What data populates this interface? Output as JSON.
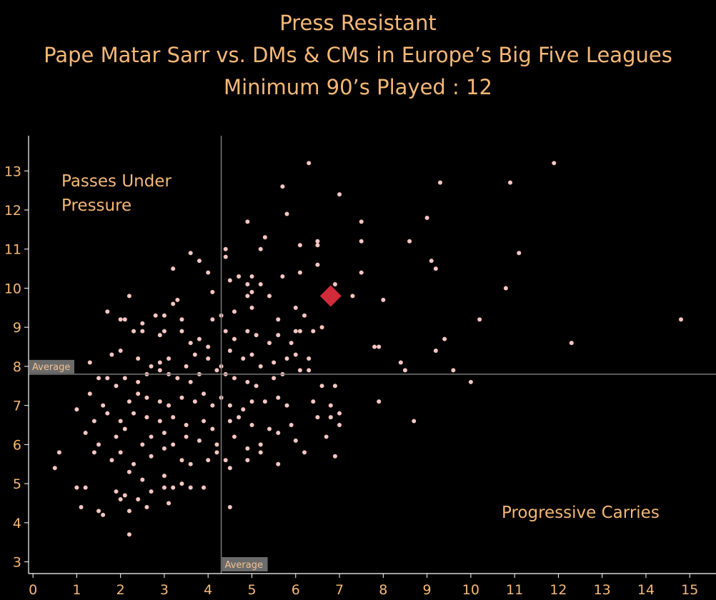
{
  "header": {
    "title": "Press Resistant",
    "subtitle": "Pape Matar Sarr vs. DMs & CMs in Europe’s Big Five Leagues",
    "note": "Minimum 90’s Played : 12"
  },
  "colors": {
    "background": "#000000",
    "text": "#f5b877",
    "point": "#f7c6c1",
    "highlight": "#d22b3b",
    "axis": "#ffffff",
    "reference": "#777777",
    "avg_tag": "#6b6b6b"
  },
  "chart_data": {
    "type": "scatter",
    "title": "Press Resistant",
    "subtitle": "Pape Matar Sarr vs. DMs & CMs in Europe’s Big Five Leagues",
    "xlabel": "Progressive Carries",
    "ylabel": "Passes Under Pressure",
    "xlim": [
      -0.1,
      15.6
    ],
    "ylim": [
      2.7,
      13.9
    ],
    "x_ticks": [
      0,
      1,
      2,
      3,
      4,
      5,
      6,
      7,
      8,
      9,
      10,
      11,
      12,
      13,
      14,
      15
    ],
    "y_ticks": [
      3,
      4,
      5,
      6,
      7,
      8,
      9,
      10,
      11,
      12,
      13
    ],
    "grid": false,
    "x_average": 4.3,
    "y_average": 7.8,
    "average_label": "Average",
    "highlight": {
      "x": 6.8,
      "y": 9.8
    },
    "points": [
      [
        6.3,
        13.2
      ],
      [
        11.9,
        13.2
      ],
      [
        5.7,
        12.6
      ],
      [
        7.0,
        12.4
      ],
      [
        9.3,
        12.7
      ],
      [
        10.9,
        12.7
      ],
      [
        5.8,
        11.9
      ],
      [
        4.9,
        11.7
      ],
      [
        7.5,
        11.7
      ],
      [
        9.0,
        11.8
      ],
      [
        5.3,
        11.3
      ],
      [
        6.5,
        11.2
      ],
      [
        7.5,
        11.2
      ],
      [
        8.6,
        11.2
      ],
      [
        11.1,
        10.9
      ],
      [
        3.6,
        10.9
      ],
      [
        3.8,
        10.7
      ],
      [
        4.4,
        11.0
      ],
      [
        4.4,
        10.8
      ],
      [
        5.2,
        11.0
      ],
      [
        6.1,
        11.1
      ],
      [
        6.5,
        11.1
      ],
      [
        9.1,
        10.7
      ],
      [
        9.2,
        10.5
      ],
      [
        3.2,
        10.5
      ],
      [
        4.0,
        10.4
      ],
      [
        5.0,
        10.3
      ],
      [
        5.7,
        10.3
      ],
      [
        6.5,
        10.6
      ],
      [
        7.5,
        10.4
      ],
      [
        4.9,
        10.1
      ],
      [
        6.1,
        10.4
      ],
      [
        6.9,
        10.1
      ],
      [
        10.8,
        10.0
      ],
      [
        4.5,
        10.2
      ],
      [
        4.7,
        10.3
      ],
      [
        5.2,
        10.1
      ],
      [
        2.2,
        9.8
      ],
      [
        3.3,
        9.7
      ],
      [
        4.1,
        9.9
      ],
      [
        4.9,
        9.8
      ],
      [
        5.0,
        9.9
      ],
      [
        5.4,
        9.8
      ],
      [
        7.3,
        9.8
      ],
      [
        8.0,
        9.7
      ],
      [
        1.7,
        9.4
      ],
      [
        2.0,
        9.2
      ],
      [
        2.1,
        9.2
      ],
      [
        2.5,
        9.1
      ],
      [
        2.8,
        9.3
      ],
      [
        3.0,
        9.3
      ],
      [
        3.2,
        9.6
      ],
      [
        3.4,
        9.2
      ],
      [
        4.1,
        9.2
      ],
      [
        4.3,
        9.3
      ],
      [
        4.6,
        9.4
      ],
      [
        5.0,
        9.5
      ],
      [
        5.6,
        9.2
      ],
      [
        6.0,
        9.5
      ],
      [
        6.2,
        9.3
      ],
      [
        14.8,
        9.2
      ],
      [
        10.2,
        9.2
      ],
      [
        2.3,
        8.9
      ],
      [
        2.5,
        8.9
      ],
      [
        2.9,
        8.8
      ],
      [
        3.0,
        8.9
      ],
      [
        3.4,
        8.9
      ],
      [
        3.6,
        8.6
      ],
      [
        3.8,
        8.7
      ],
      [
        4.0,
        8.5
      ],
      [
        4.4,
        8.9
      ],
      [
        4.6,
        8.7
      ],
      [
        4.9,
        8.9
      ],
      [
        5.1,
        8.8
      ],
      [
        5.4,
        8.6
      ],
      [
        5.6,
        8.8
      ],
      [
        5.9,
        8.6
      ],
      [
        6.0,
        8.9
      ],
      [
        6.1,
        8.9
      ],
      [
        6.4,
        8.9
      ],
      [
        6.6,
        9.0
      ],
      [
        9.4,
        8.7
      ],
      [
        9.2,
        8.4
      ],
      [
        12.3,
        8.6
      ],
      [
        1.8,
        8.3
      ],
      [
        1.3,
        8.1
      ],
      [
        2.0,
        8.4
      ],
      [
        2.4,
        8.2
      ],
      [
        2.7,
        8.0
      ],
      [
        2.9,
        8.1
      ],
      [
        3.1,
        8.2
      ],
      [
        3.5,
        8.0
      ],
      [
        3.7,
        8.3
      ],
      [
        4.0,
        8.2
      ],
      [
        4.3,
        8.0
      ],
      [
        4.5,
        8.4
      ],
      [
        4.8,
        8.2
      ],
      [
        5.0,
        8.3
      ],
      [
        5.2,
        8.0
      ],
      [
        5.5,
        8.1
      ],
      [
        5.8,
        8.2
      ],
      [
        6.0,
        8.3
      ],
      [
        6.3,
        8.2
      ],
      [
        7.8,
        8.5
      ],
      [
        7.9,
        8.5
      ],
      [
        8.4,
        8.1
      ],
      [
        8.5,
        7.9
      ],
      [
        1.5,
        7.7
      ],
      [
        1.7,
        7.7
      ],
      [
        1.9,
        7.5
      ],
      [
        2.1,
        7.7
      ],
      [
        2.4,
        7.6
      ],
      [
        2.6,
        7.8
      ],
      [
        2.9,
        7.9
      ],
      [
        3.1,
        7.8
      ],
      [
        3.3,
        7.7
      ],
      [
        3.6,
        7.6
      ],
      [
        3.8,
        7.8
      ],
      [
        4.2,
        7.9
      ],
      [
        4.4,
        7.8
      ],
      [
        4.6,
        7.7
      ],
      [
        4.9,
        7.6
      ],
      [
        5.1,
        7.5
      ],
      [
        5.5,
        7.7
      ],
      [
        5.7,
        7.8
      ],
      [
        6.1,
        7.9
      ],
      [
        6.3,
        7.9
      ],
      [
        6.6,
        7.5
      ],
      [
        6.9,
        7.5
      ],
      [
        9.6,
        7.9
      ],
      [
        10.0,
        7.6
      ],
      [
        7.9,
        7.1
      ],
      [
        1.3,
        7.3
      ],
      [
        1.6,
        7.0
      ],
      [
        2.2,
        7.1
      ],
      [
        2.4,
        7.3
      ],
      [
        2.6,
        7.2
      ],
      [
        2.9,
        7.1
      ],
      [
        3.1,
        7.0
      ],
      [
        3.4,
        7.2
      ],
      [
        3.7,
        7.1
      ],
      [
        3.9,
        7.3
      ],
      [
        4.1,
        7.0
      ],
      [
        4.3,
        7.2
      ],
      [
        4.5,
        7.0
      ],
      [
        4.8,
        6.9
      ],
      [
        5.0,
        7.1
      ],
      [
        5.3,
        7.1
      ],
      [
        5.6,
        7.2
      ],
      [
        5.8,
        7.0
      ],
      [
        6.4,
        7.1
      ],
      [
        6.8,
        7.0
      ],
      [
        7.0,
        6.8
      ],
      [
        1.0,
        6.9
      ],
      [
        1.4,
        6.6
      ],
      [
        1.7,
        6.8
      ],
      [
        2.0,
        6.6
      ],
      [
        2.3,
        6.8
      ],
      [
        2.6,
        6.7
      ],
      [
        2.9,
        6.6
      ],
      [
        3.2,
        6.7
      ],
      [
        3.5,
        6.5
      ],
      [
        3.9,
        6.6
      ],
      [
        4.1,
        6.4
      ],
      [
        4.5,
        6.6
      ],
      [
        4.7,
        6.7
      ],
      [
        5.0,
        6.5
      ],
      [
        5.4,
        6.4
      ],
      [
        5.9,
        6.5
      ],
      [
        6.5,
        6.7
      ],
      [
        6.8,
        6.7
      ],
      [
        7.0,
        6.5
      ],
      [
        8.7,
        6.6
      ],
      [
        1.2,
        6.3
      ],
      [
        1.5,
        6.0
      ],
      [
        1.9,
        6.2
      ],
      [
        2.1,
        6.4
      ],
      [
        2.5,
        6.0
      ],
      [
        2.7,
        6.2
      ],
      [
        3.0,
        6.3
      ],
      [
        3.2,
        6.0
      ],
      [
        3.5,
        6.2
      ],
      [
        3.8,
        6.1
      ],
      [
        4.2,
        6.0
      ],
      [
        4.6,
        6.2
      ],
      [
        4.9,
        5.9
      ],
      [
        5.2,
        6.0
      ],
      [
        5.6,
        6.3
      ],
      [
        6.0,
        6.1
      ],
      [
        6.7,
        6.2
      ],
      [
        0.6,
        5.8
      ],
      [
        1.4,
        5.8
      ],
      [
        1.8,
        5.6
      ],
      [
        2.0,
        5.8
      ],
      [
        2.3,
        5.5
      ],
      [
        2.7,
        5.7
      ],
      [
        3.0,
        5.9
      ],
      [
        3.4,
        5.6
      ],
      [
        3.6,
        5.5
      ],
      [
        4.0,
        5.6
      ],
      [
        4.2,
        5.8
      ],
      [
        4.5,
        5.4
      ],
      [
        4.9,
        5.6
      ],
      [
        5.2,
        5.8
      ],
      [
        5.6,
        5.5
      ],
      [
        6.2,
        5.8
      ],
      [
        6.9,
        5.7
      ],
      [
        0.5,
        5.4
      ],
      [
        1.0,
        4.9
      ],
      [
        1.2,
        4.9
      ],
      [
        1.9,
        4.8
      ],
      [
        2.1,
        4.7
      ],
      [
        2.4,
        4.6
      ],
      [
        2.7,
        4.8
      ],
      [
        3.0,
        4.9
      ],
      [
        3.2,
        4.9
      ],
      [
        3.4,
        5.0
      ],
      [
        3.6,
        4.9
      ],
      [
        3.9,
        4.9
      ],
      [
        2.5,
        5.1
      ],
      [
        2.2,
        5.3
      ],
      [
        1.1,
        4.4
      ],
      [
        1.5,
        4.3
      ],
      [
        1.6,
        4.2
      ],
      [
        2.0,
        4.6
      ],
      [
        2.2,
        4.3
      ],
      [
        2.6,
        4.4
      ],
      [
        3.1,
        4.5
      ],
      [
        4.5,
        4.4
      ],
      [
        2.2,
        3.7
      ],
      [
        3.0,
        5.2
      ],
      [
        4.4,
        5.6
      ]
    ]
  }
}
